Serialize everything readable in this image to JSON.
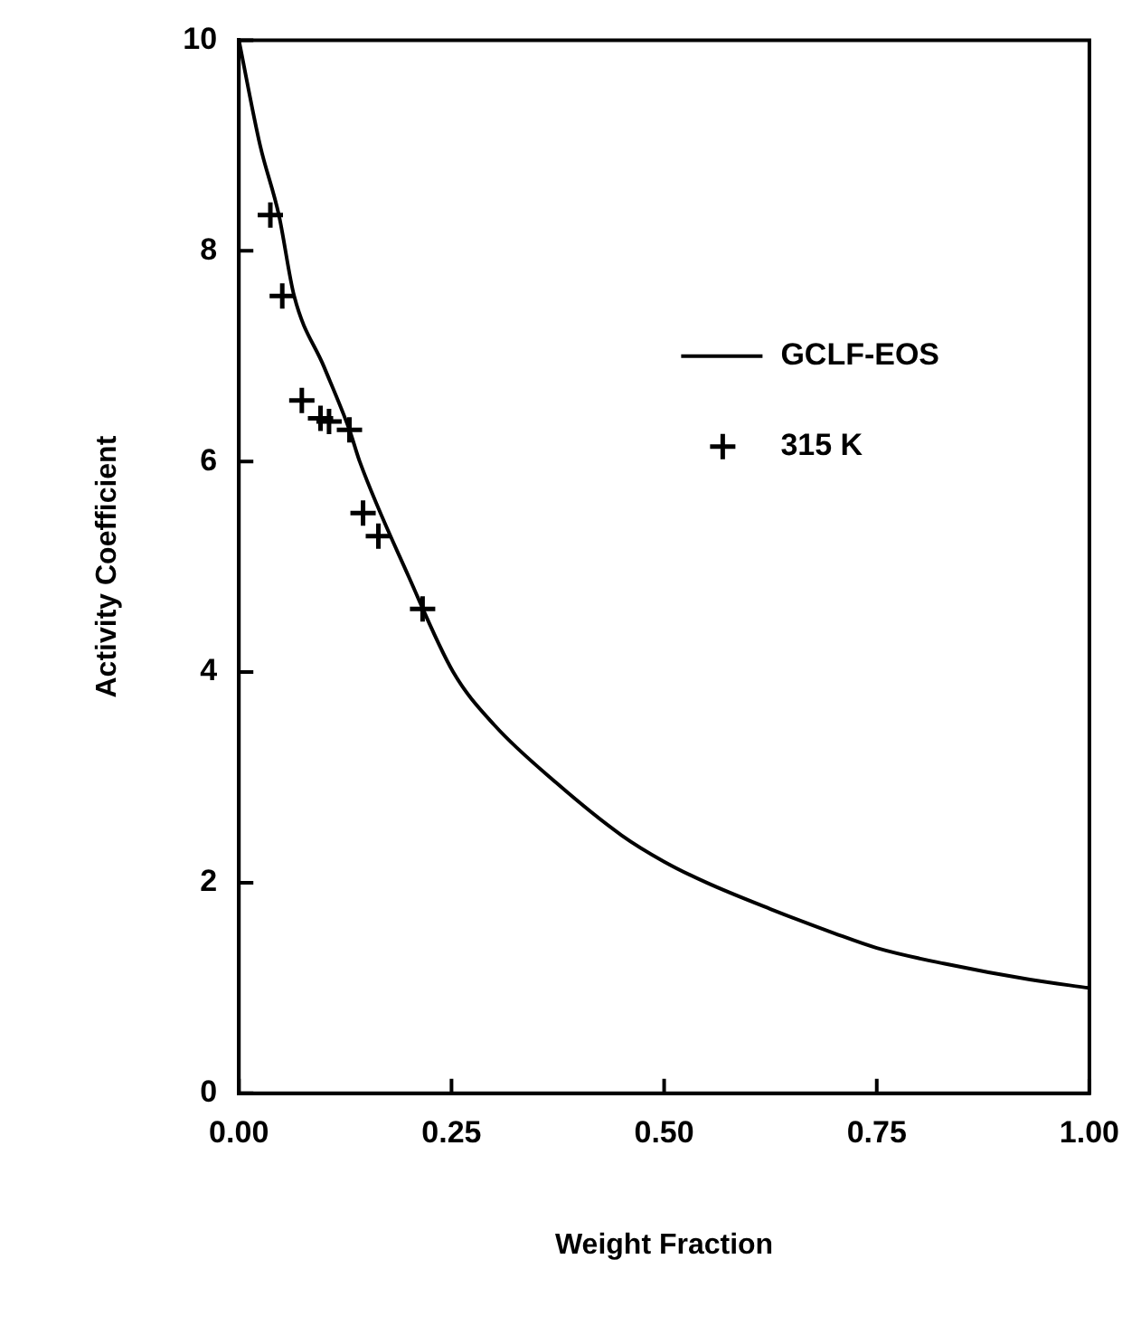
{
  "chart_data": {
    "type": "scatter",
    "xlabel": "Weight Fraction",
    "ylabel": "Activity Coefficient",
    "xlim": [
      0,
      1
    ],
    "xticks": [
      {
        "value": 0,
        "label": "0.00"
      },
      {
        "value": 0.25,
        "label": "0.25"
      },
      {
        "value": 0.5,
        "label": "0.50"
      },
      {
        "value": 0.75,
        "label": "0.75"
      },
      {
        "value": 1,
        "label": "1.00"
      }
    ],
    "ylim": [
      0,
      10
    ],
    "yticks": [
      0,
      2,
      4,
      6,
      8,
      10
    ],
    "grid": false,
    "legend": "right",
    "series": [
      {
        "name": "GCLF-EOS",
        "type": "line",
        "color": "#000000",
        "marker": "none",
        "x": [
          0,
          0.025,
          0.047,
          0.065,
          0.1,
          0.13,
          0.142,
          0.2,
          0.252,
          0.3,
          0.373,
          0.45,
          0.5,
          0.55,
          0.625,
          0.7,
          0.75,
          0.83,
          0.93,
          1.0
        ],
        "values": [
          10,
          9.0,
          8.34,
          7.57,
          6.9,
          6.3,
          6.0,
          4.9,
          4.0,
          3.5,
          2.95,
          2.45,
          2.2,
          2.0,
          1.75,
          1.52,
          1.38,
          1.23,
          1.08,
          1.0
        ]
      },
      {
        "name": "315 K",
        "color": "#000000",
        "marker": "cross",
        "x": [
          0.037,
          0.051,
          0.074,
          0.096,
          0.106,
          0.13,
          0.146,
          0.164,
          0.216
        ],
        "values": [
          8.34,
          7.57,
          6.58,
          6.41,
          6.38,
          6.3,
          5.51,
          5.29,
          4.6
        ]
      }
    ]
  }
}
